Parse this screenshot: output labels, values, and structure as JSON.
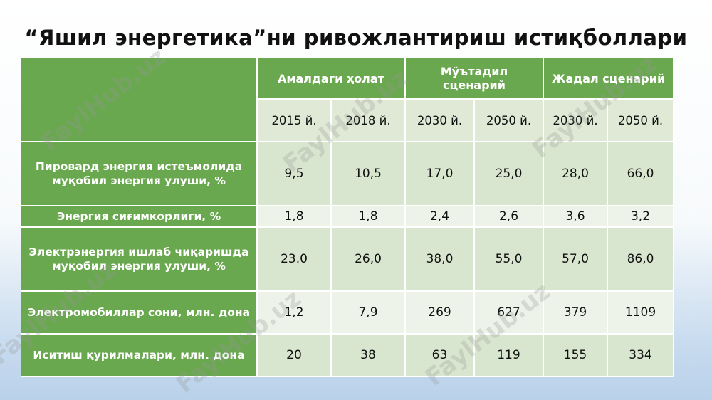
{
  "title": "“Яшил энергетика”ни ривожлантириш истиқболлари",
  "watermark": "FaylHub.uz",
  "groups": [
    {
      "label": "Амалдаги ҳолат"
    },
    {
      "label": "Мўътадил сценарий"
    },
    {
      "label": "Жадал сценарий"
    }
  ],
  "years": [
    "2015 й.",
    "2018 й.",
    "2030 й.",
    "2050 й.",
    "2030 й.",
    "2050 й."
  ],
  "rows": [
    {
      "label": "Пировард энергия истеъмолида муқобил энергия улуши, %",
      "values": [
        "9,5",
        "10,5",
        "17,0",
        "25,0",
        "28,0",
        "66,0"
      ]
    },
    {
      "label": "Энергия сиғимкорлиги, %",
      "values": [
        "1,8",
        "1,8",
        "2,4",
        "2,6",
        "3,6",
        "3,2"
      ]
    },
    {
      "label": "Электрэнергия ишлаб чиқаришда муқобил энергия улуши, %",
      "values": [
        "23.0",
        "26,0",
        "38,0",
        "55,0",
        "57,0",
        "86,0"
      ]
    },
    {
      "label": "Электромобиллар сони, млн. дона",
      "values": [
        "1,2",
        "7,9",
        "269",
        "627",
        "379",
        "1109"
      ]
    },
    {
      "label": "Иситиш қурилмалари, млн. дона",
      "values": [
        "20",
        "38",
        "63",
        "119",
        "155",
        "334"
      ]
    }
  ],
  "colors": {
    "header_green": "#6aa84f",
    "row_dark": "#d9e6cf",
    "row_light": "#edf3e9"
  }
}
